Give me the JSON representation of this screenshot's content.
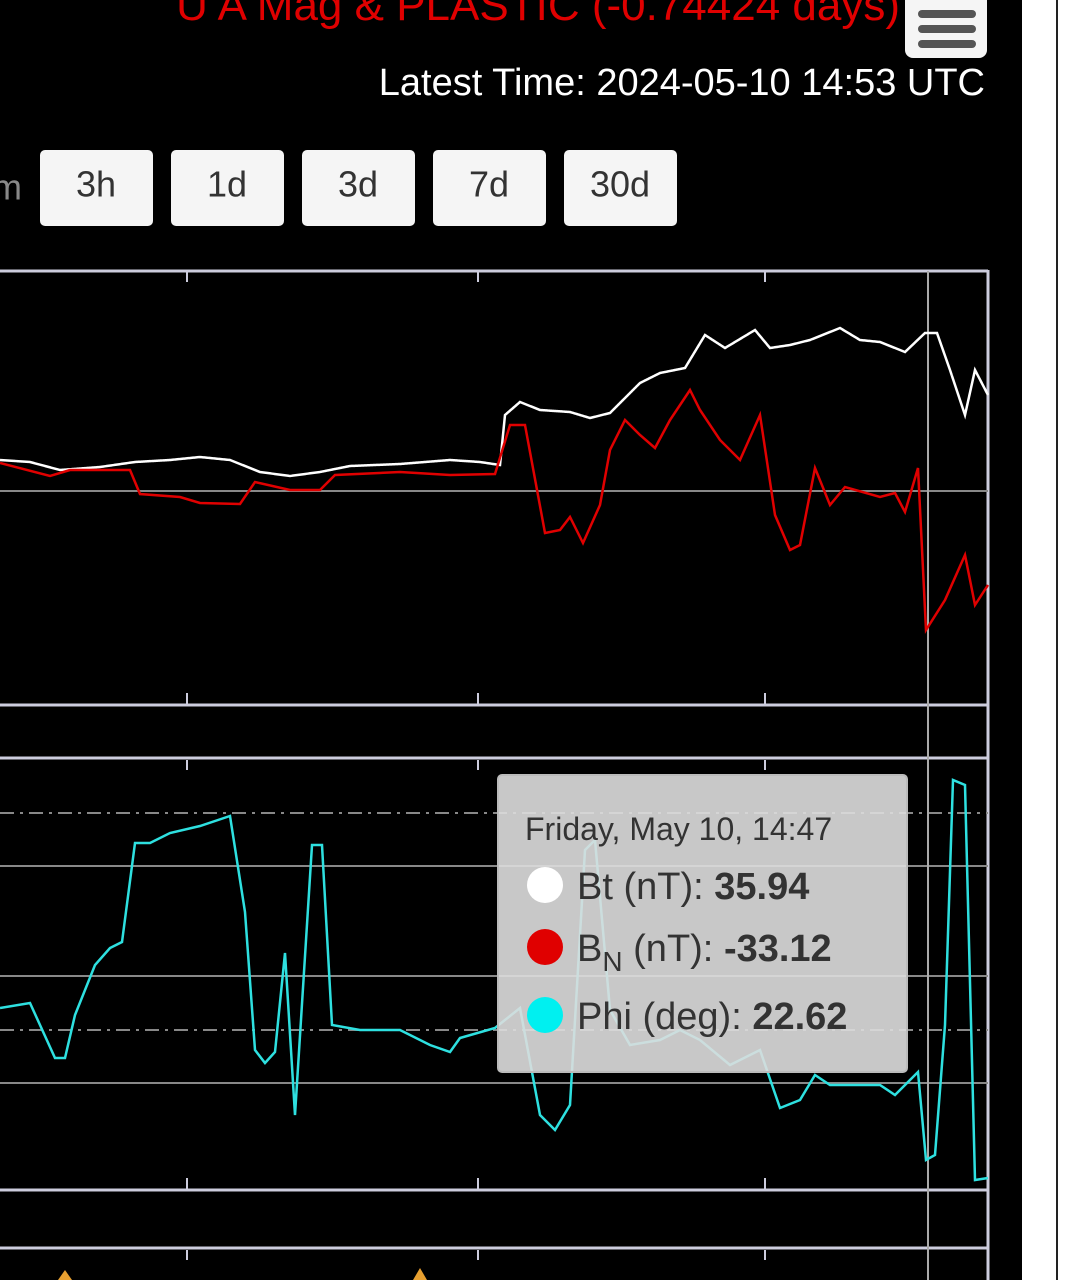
{
  "header": {
    "title": "U A Mag & PLASTIC (-0.74424 days)",
    "latest_time": "Latest Time: 2024-05-10 14:53 UTC"
  },
  "buttons": [
    "m",
    "3h",
    "1d",
    "3d",
    "7d",
    "30d"
  ],
  "tooltip": {
    "date": "Friday, May 10, 14:47",
    "items": [
      {
        "label": "Bt",
        "unit": "(nT):",
        "value": 35.94
      },
      {
        "label": "B",
        "subscript": "N",
        "unit": "(nT):",
        "value": -33.12
      },
      {
        "label": "Phi",
        "unit": "(deg):",
        "value": 22.62
      }
    ]
  }
}
